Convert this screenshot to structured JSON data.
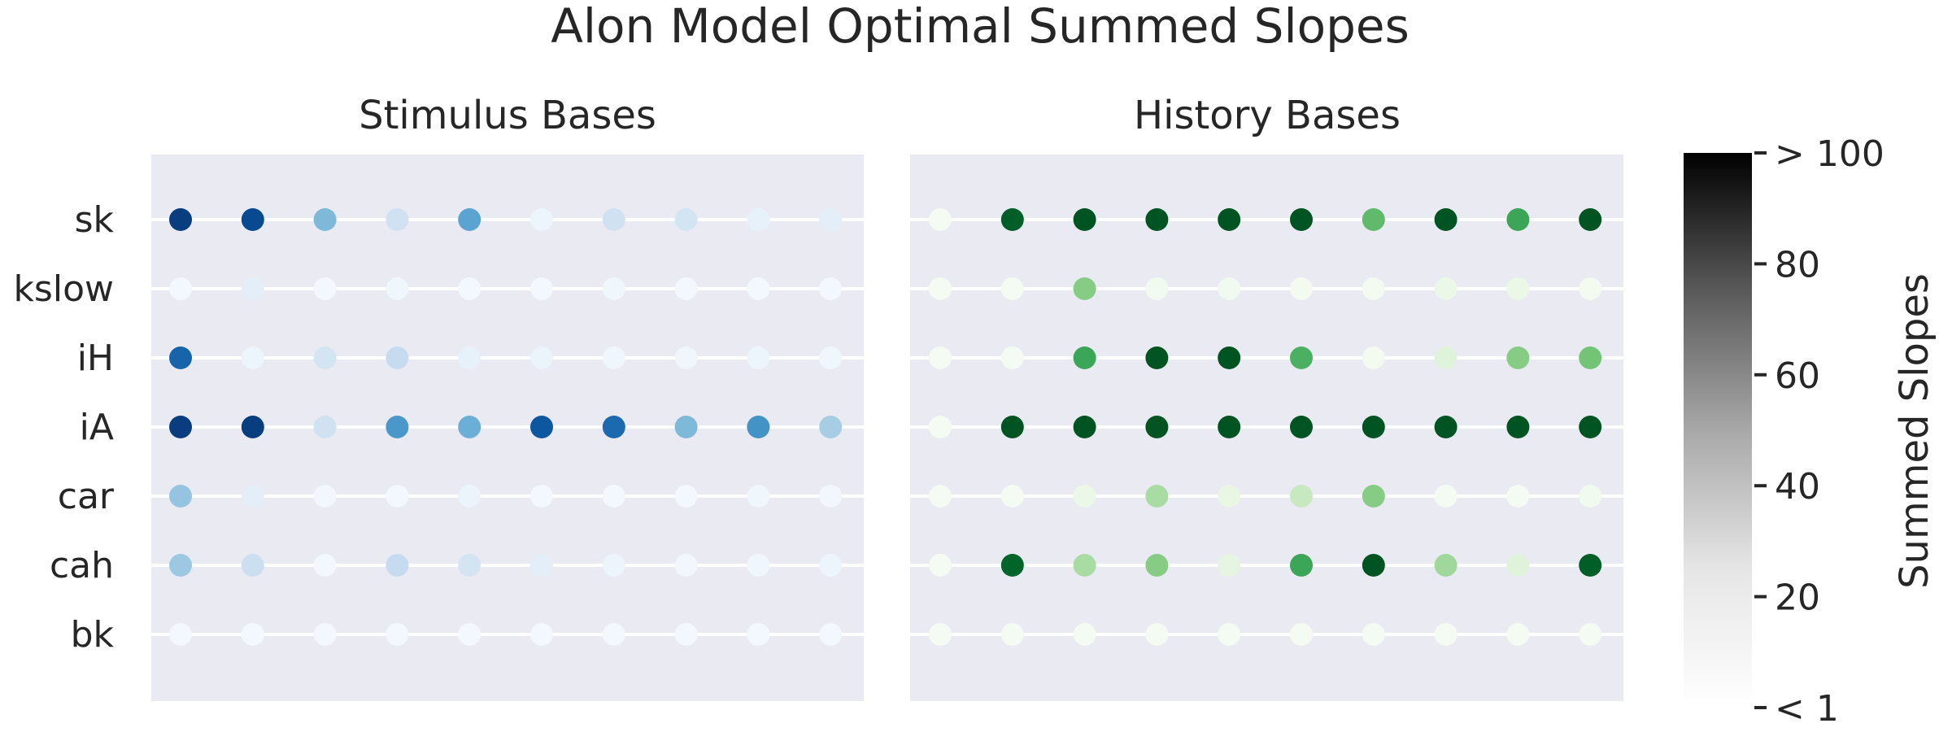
{
  "chart_data": {
    "type": "scatter",
    "title": "Alon Model Optimal Summed Slopes",
    "rows": [
      "sk",
      "kslow",
      "iH",
      "iA",
      "car",
      "cah",
      "bk"
    ],
    "columns": 10,
    "panels": [
      {
        "title": "Stimulus Bases",
        "colormap": "Blues",
        "values": {
          "sk": [
            95,
            90,
            45,
            20,
            55,
            5,
            20,
            18,
            8,
            10
          ],
          "kslow": [
            2,
            10,
            2,
            4,
            2,
            2,
            4,
            2,
            2,
            2
          ],
          "iH": [
            80,
            5,
            18,
            25,
            8,
            6,
            4,
            4,
            5,
            4
          ],
          "iA": [
            95,
            95,
            20,
            60,
            50,
            85,
            78,
            45,
            62,
            35
          ],
          "car": [
            40,
            10,
            3,
            2,
            6,
            2,
            2,
            2,
            4,
            3
          ],
          "cah": [
            38,
            22,
            2,
            25,
            18,
            10,
            5,
            3,
            4,
            5
          ],
          "bk": [
            2,
            2,
            2,
            2,
            2,
            2,
            2,
            2,
            2,
            2
          ]
        }
      },
      {
        "title": "History Bases",
        "colormap": "Greens",
        "values": {
          "sk": [
            2,
            92,
            95,
            95,
            95,
            95,
            55,
            95,
            65,
            95
          ],
          "kslow": [
            2,
            2,
            45,
            4,
            4,
            3,
            3,
            8,
            8,
            3
          ],
          "iH": [
            2,
            2,
            65,
            95,
            95,
            60,
            3,
            15,
            45,
            50
          ],
          "iA": [
            2,
            95,
            95,
            95,
            95,
            95,
            95,
            95,
            95,
            95
          ],
          "car": [
            2,
            2,
            8,
            35,
            10,
            25,
            45,
            2,
            2,
            4
          ],
          "cah": [
            2,
            90,
            35,
            45,
            12,
            65,
            95,
            38,
            15,
            92
          ],
          "bk": [
            2,
            2,
            2,
            2,
            2,
            2,
            2,
            2,
            2,
            2
          ]
        }
      }
    ],
    "colorbar": {
      "label": "Summed Slopes",
      "colormap": "Greys",
      "range": [
        0,
        100
      ],
      "ticks": [
        {
          "value": 100,
          "label": "> 100"
        },
        {
          "value": 80,
          "label": "80"
        },
        {
          "value": 60,
          "label": "60"
        },
        {
          "value": 40,
          "label": "40"
        },
        {
          "value": 20,
          "label": "20"
        },
        {
          "value": 0,
          "label": "< 1"
        }
      ]
    },
    "background_color": "#eaeaf2",
    "gridline_color": "#ffffff",
    "grid": true
  }
}
